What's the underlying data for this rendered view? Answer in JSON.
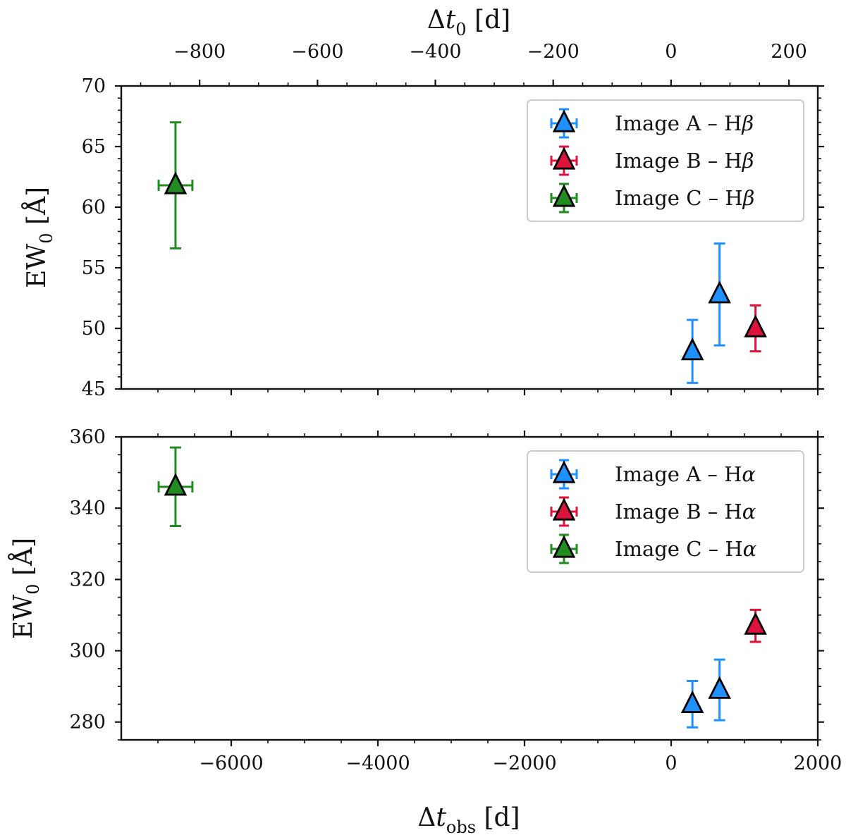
{
  "chart_data": [
    {
      "type": "scatter",
      "panel": "top",
      "xlabel": "Δt_obs [d]",
      "top_xlabel": "Δt_0 [d]",
      "ylabel": "EW_0 [Å]",
      "xlim": [
        -7500,
        2000
      ],
      "ylim": [
        45,
        70
      ],
      "top_xlim": [
        -933,
        249
      ],
      "yticks": [
        45,
        50,
        55,
        60,
        65,
        70
      ],
      "ytick_labels": [
        "45",
        "50",
        "55",
        "60",
        "65",
        "70"
      ],
      "top_xticks": [
        -800,
        -600,
        -400,
        -200,
        0,
        200
      ],
      "top_xtick_labels": [
        "−800",
        "−600",
        "−400",
        "−200",
        "0",
        "200"
      ],
      "legend": "top-right",
      "series": [
        {
          "name": "Image A – Hβ",
          "label_main": "Image A – H",
          "label_greek": "β",
          "color": "#1e90ff",
          "points": [
            {
              "x": 290,
              "y": 48.1,
              "xerr": 0,
              "yerr": 2.6
            },
            {
              "x": 660,
              "y": 52.8,
              "xerr": 0,
              "yerr": 4.2
            }
          ]
        },
        {
          "name": "Image B – Hβ",
          "label_main": "Image B – H",
          "label_greek": "β",
          "color": "#dc143c",
          "points": [
            {
              "x": 1150,
              "y": 50.0,
              "xerr": 0,
              "yerr": 1.9
            }
          ]
        },
        {
          "name": "Image C – Hβ",
          "label_main": "Image C – H",
          "label_greek": "β",
          "color": "#228b22",
          "points": [
            {
              "x": -6760,
              "y": 61.8,
              "xerr": 230,
              "yerr": 5.2
            }
          ]
        }
      ]
    },
    {
      "type": "scatter",
      "panel": "bottom",
      "xlabel": "Δt_obs [d]",
      "ylabel": "EW_0 [Å]",
      "xlim": [
        -7500,
        2000
      ],
      "ylim": [
        275,
        360
      ],
      "xticks": [
        -6000,
        -4000,
        -2000,
        0,
        2000
      ],
      "xtick_labels": [
        "−6000",
        "−4000",
        "−2000",
        "0",
        "2000"
      ],
      "yticks": [
        280,
        300,
        320,
        340,
        360
      ],
      "ytick_labels": [
        "280",
        "300",
        "320",
        "340",
        "360"
      ],
      "legend": "top-right",
      "series": [
        {
          "name": "Image A – Hα",
          "label_main": "Image A – H",
          "label_greek": "α",
          "color": "#1e90ff",
          "points": [
            {
              "x": 290,
              "y": 285.0,
              "xerr": 0,
              "yerr": 6.5
            },
            {
              "x": 660,
              "y": 289.0,
              "xerr": 0,
              "yerr": 8.5
            }
          ]
        },
        {
          "name": "Image B – Hα",
          "label_main": "Image B – H",
          "label_greek": "α",
          "color": "#dc143c",
          "points": [
            {
              "x": 1150,
              "y": 307.0,
              "xerr": 0,
              "yerr": 4.5
            }
          ]
        },
        {
          "name": "Image C – Hα",
          "label_main": "Image C – H",
          "label_greek": "α",
          "color": "#228b22",
          "points": [
            {
              "x": -6760,
              "y": 346.0,
              "xerr": 230,
              "yerr": 11.0
            }
          ]
        }
      ]
    }
  ]
}
